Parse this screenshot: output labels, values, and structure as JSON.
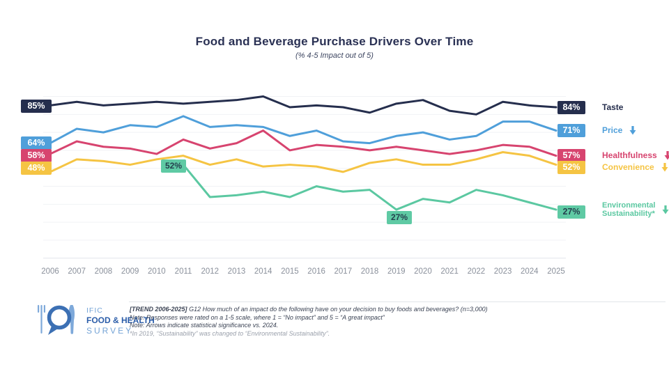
{
  "chart_data": {
    "type": "line",
    "title": "Food and Beverage Purchase Drivers Over Time",
    "subtitle": "(% 4-5 Impact out of 5)",
    "x": [
      2006,
      2007,
      2008,
      2009,
      2010,
      2011,
      2012,
      2013,
      2014,
      2015,
      2016,
      2017,
      2018,
      2019,
      2020,
      2021,
      2022,
      2023,
      2024,
      2025
    ],
    "ylim": [
      0,
      100
    ],
    "y_axis_labels": "hidden",
    "grid": {
      "horizontal_step_percent": 10,
      "color": "#f0f2f5"
    },
    "series": [
      {
        "name": "Taste",
        "color": "#252e4d",
        "values": [
          85,
          87,
          85,
          86,
          87,
          86,
          87,
          88,
          90,
          84,
          85,
          84,
          81,
          86,
          88,
          82,
          80,
          87,
          85,
          84
        ],
        "first_label": "85%",
        "last_label": "84%",
        "trend_arrow": "none"
      },
      {
        "name": "Price",
        "color": "#4f9fda",
        "values": [
          64,
          72,
          70,
          74,
          73,
          79,
          73,
          74,
          73,
          68,
          71,
          65,
          64,
          68,
          70,
          66,
          68,
          76,
          76,
          71
        ],
        "first_label": "64%",
        "last_label": "71%",
        "trend_arrow": "down"
      },
      {
        "name": "Healthfulness",
        "color": "#d7446f",
        "values": [
          58,
          65,
          62,
          61,
          58,
          66,
          61,
          64,
          71,
          60,
          63,
          62,
          60,
          62,
          60,
          58,
          60,
          63,
          62,
          57
        ],
        "first_label": "58%",
        "last_label": "57%",
        "trend_arrow": "down"
      },
      {
        "name": "Convenience",
        "color": "#f5c443",
        "values": [
          48,
          55,
          54,
          52,
          55,
          57,
          52,
          55,
          51,
          52,
          51,
          48,
          53,
          55,
          52,
          52,
          55,
          59,
          57,
          52
        ],
        "first_label": "48%",
        "last_label": "52%",
        "trend_arrow": "down"
      },
      {
        "name": "Environmental Sustainability*",
        "color": "#5bc8a1",
        "name_lines": [
          "Environmental",
          "Sustainability*"
        ],
        "values": [
          null,
          null,
          null,
          null,
          null,
          52,
          34,
          35,
          37,
          34,
          40,
          37,
          38,
          27,
          33,
          31,
          38,
          35,
          31,
          27
        ],
        "first_label": "52%",
        "last_label": "27%",
        "trend_arrow": "down",
        "inline_annotations": [
          {
            "x": 2011,
            "label": "52%"
          },
          {
            "x": 2019,
            "label": "27%"
          }
        ]
      }
    ],
    "legend_position": "right"
  },
  "footer": {
    "logo": {
      "line1": "IFIC",
      "line2": "FOOD & HEALTH",
      "line3": "SURVEY"
    },
    "notes": {
      "line1_bold": "[TREND 2006-2025]",
      "line1_rest": "G12 How much of an impact do the following have on your decision to buy foods and beverages? (n=3,000)",
      "line2": "Note: Responses were rated on a 1-5 scale, where 1 = “No impact” and 5 = “A great impact”",
      "line3": "Note: Arrows indicate statistical significance vs. 2024.",
      "line4": "*In 2019, “Sustainability” was changed to “Environmental Sustainability”."
    }
  }
}
